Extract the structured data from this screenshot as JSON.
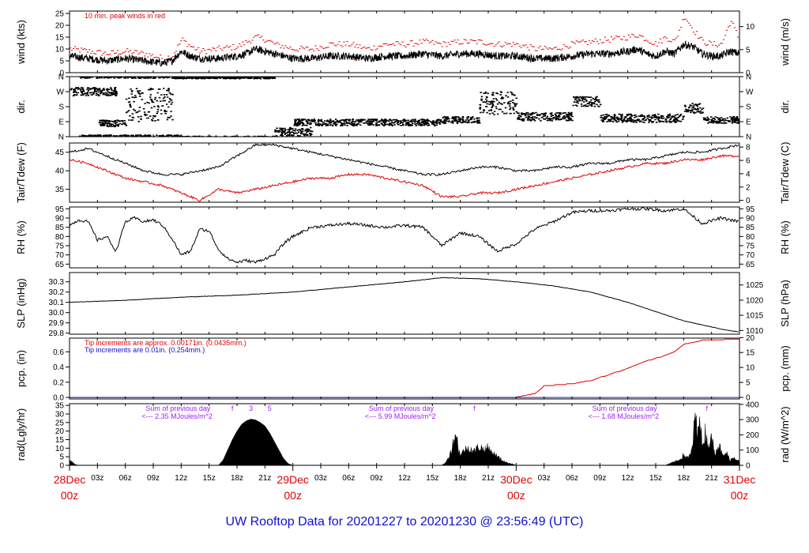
{
  "title": "UW Rooftop Data for 20201227  to  20201230 @ 23:56:49  (UTC)",
  "colors": {
    "red": "#e00000",
    "blue": "#1010d0",
    "purple": "#a020f0",
    "black": "#000000"
  },
  "x_axis": {
    "range_hours": [
      0,
      72
    ],
    "major": [
      {
        "hour": 0,
        "top": "28Dec",
        "bottom": "00z"
      },
      {
        "hour": 24,
        "top": "29Dec",
        "bottom": "00z"
      },
      {
        "hour": 48,
        "top": "30Dec",
        "bottom": "00z"
      },
      {
        "hour": 72,
        "top": "31Dec",
        "bottom": "00z"
      }
    ],
    "minor_labels": [
      "03z",
      "06z",
      "09z",
      "12z",
      "15z",
      "18z",
      "21z"
    ]
  },
  "chart_data": [
    {
      "type": "line",
      "key": "wind",
      "ylabel": "wind (kts)",
      "ylabel_right": "wind (m/s)",
      "ylim": [
        0,
        26
      ],
      "yticks": [
        0,
        5,
        10,
        15,
        20,
        25
      ],
      "yticks_right": [
        0,
        5,
        10
      ],
      "annotation": "10 min. peak winds in red",
      "series": [
        {
          "role": "mean",
          "color": "#000000",
          "x": [
            0,
            2,
            4,
            6,
            8,
            10,
            11,
            12,
            13,
            14,
            16,
            18,
            19,
            20,
            21,
            22,
            24,
            26,
            28,
            30,
            32,
            34,
            36,
            38,
            40,
            42,
            44,
            46,
            48,
            50,
            52,
            54,
            56,
            58,
            60,
            61,
            62,
            63,
            64,
            65,
            66,
            67,
            68,
            69,
            70,
            71,
            72
          ],
          "y": [
            7,
            6,
            5,
            6,
            5,
            4,
            5,
            9,
            7,
            6,
            6,
            7,
            8,
            10,
            9,
            8,
            6,
            6,
            7,
            7,
            6,
            7,
            7,
            8,
            7,
            8,
            8,
            7,
            7,
            6,
            6,
            7,
            8,
            8,
            9,
            10,
            8,
            7,
            9,
            8,
            12,
            11,
            8,
            7,
            7,
            9,
            8
          ]
        },
        {
          "role": "peak",
          "color": "#e00000",
          "x": [
            0,
            2,
            4,
            6,
            8,
            10,
            11,
            12,
            13,
            14,
            16,
            18,
            19,
            20,
            21,
            22,
            24,
            26,
            28,
            30,
            32,
            34,
            36,
            38,
            40,
            42,
            44,
            46,
            48,
            50,
            52,
            54,
            56,
            58,
            60,
            61,
            62,
            63,
            64,
            65,
            66,
            67,
            68,
            69,
            70,
            71,
            72
          ],
          "y": [
            10,
            9,
            8,
            9,
            8,
            6,
            7,
            14,
            11,
            9,
            10,
            11,
            13,
            15,
            14,
            12,
            10,
            10,
            12,
            12,
            10,
            12,
            12,
            13,
            12,
            13,
            13,
            12,
            12,
            10,
            10,
            12,
            13,
            14,
            15,
            16,
            14,
            12,
            15,
            13,
            24,
            18,
            13,
            12,
            12,
            22,
            13
          ]
        }
      ]
    },
    {
      "type": "scatter",
      "key": "dir",
      "ylabel": "dir.",
      "ylabel_right": "dir.",
      "ylim": [
        0,
        360
      ],
      "yticks": [
        {
          "v": 0,
          "label": "N"
        },
        {
          "v": 90,
          "label": "E"
        },
        {
          "v": 180,
          "label": "S"
        },
        {
          "v": 270,
          "label": "W"
        },
        {
          "v": 360,
          "label": "N"
        }
      ],
      "segments": [
        {
          "x0": 0,
          "x1": 5,
          "y": 270,
          "spread": 25
        },
        {
          "x0": 1,
          "x1": 12,
          "y": 360,
          "spread": 10
        },
        {
          "x0": 3,
          "x1": 6,
          "y": 80,
          "spread": 20
        },
        {
          "x0": 6,
          "x1": 11,
          "y": 190,
          "spread": 100
        },
        {
          "x0": 11,
          "x1": 22,
          "y": 355,
          "spread": 8
        },
        {
          "x0": 22,
          "x1": 26,
          "y": 30,
          "spread": 25
        },
        {
          "x0": 24,
          "x1": 40,
          "y": 85,
          "spread": 20
        },
        {
          "x0": 40,
          "x1": 44,
          "y": 100,
          "spread": 20
        },
        {
          "x0": 44,
          "x1": 48,
          "y": 200,
          "spread": 70
        },
        {
          "x0": 48,
          "x1": 54,
          "y": 120,
          "spread": 25
        },
        {
          "x0": 54,
          "x1": 57,
          "y": 210,
          "spread": 30
        },
        {
          "x0": 57,
          "x1": 66,
          "y": 110,
          "spread": 25
        },
        {
          "x0": 66,
          "x1": 68,
          "y": 170,
          "spread": 30
        },
        {
          "x0": 68,
          "x1": 72,
          "y": 100,
          "spread": 20
        }
      ]
    },
    {
      "type": "line",
      "key": "temp",
      "ylabel": "Tair/Tdew (F)",
      "ylabel_right": "Tair/Tdew (C)",
      "ylim": [
        31.5,
        47.5
      ],
      "yticks": [
        35,
        40,
        45
      ],
      "yticks_right": [
        {
          "label": "0",
          "f": 32
        },
        {
          "label": "2",
          "f": 35.6
        },
        {
          "label": "4",
          "f": 39.2
        },
        {
          "label": "6",
          "f": 42.8
        },
        {
          "label": "8",
          "f": 46.4
        }
      ],
      "series": [
        {
          "role": "Tair",
          "color": "#000000",
          "x": [
            0,
            2,
            4,
            6,
            8,
            10,
            12,
            14,
            16,
            18,
            20,
            22,
            24,
            26,
            28,
            30,
            32,
            34,
            36,
            38,
            40,
            42,
            44,
            46,
            48,
            50,
            52,
            54,
            56,
            58,
            60,
            62,
            64,
            66,
            68,
            70,
            72
          ],
          "y": [
            45,
            46,
            44,
            42,
            40,
            39,
            39,
            40,
            41,
            44,
            47,
            47,
            46,
            45,
            44,
            43,
            42,
            41,
            40,
            39,
            39,
            40,
            41,
            41,
            40,
            40,
            41,
            41,
            42,
            42,
            43,
            43,
            44,
            45,
            45,
            46,
            47
          ]
        },
        {
          "role": "Tdew",
          "color": "#e00000",
          "x": [
            0,
            2,
            4,
            6,
            8,
            10,
            12,
            14,
            16,
            18,
            20,
            22,
            24,
            26,
            28,
            30,
            32,
            34,
            36,
            38,
            40,
            42,
            44,
            46,
            48,
            50,
            52,
            54,
            56,
            58,
            60,
            62,
            64,
            66,
            68,
            70,
            72
          ],
          "y": [
            43,
            42,
            40,
            38,
            37,
            36,
            34,
            32,
            35,
            34,
            35,
            36,
            37,
            38,
            38,
            39,
            39,
            38,
            37,
            36,
            33,
            33,
            34,
            34,
            35,
            36,
            37,
            38,
            39,
            40,
            41,
            42,
            42,
            43,
            43,
            44,
            44
          ]
        }
      ]
    },
    {
      "type": "line",
      "key": "rh",
      "ylabel": "RH (%)",
      "ylabel_right": "RH (%)",
      "ylim": [
        63,
        96
      ],
      "yticks": [
        65,
        70,
        75,
        80,
        85,
        90,
        95
      ],
      "series": [
        {
          "role": "RH",
          "color": "#000000",
          "x": [
            0,
            1,
            2,
            3,
            4,
            5,
            6,
            7,
            8,
            9,
            10,
            11,
            12,
            13,
            14,
            15,
            16,
            17,
            18,
            19,
            20,
            21,
            22,
            23,
            24,
            26,
            28,
            30,
            32,
            34,
            36,
            38,
            40,
            42,
            44,
            46,
            48,
            50,
            52,
            54,
            56,
            58,
            60,
            62,
            64,
            66,
            68,
            70,
            72
          ],
          "y": [
            86,
            89,
            88,
            78,
            80,
            72,
            88,
            90,
            88,
            89,
            86,
            79,
            70,
            72,
            84,
            83,
            73,
            68,
            66,
            67,
            66,
            68,
            70,
            76,
            80,
            85,
            86,
            87,
            86,
            85,
            86,
            85,
            75,
            82,
            80,
            72,
            76,
            84,
            88,
            93,
            94,
            94,
            95,
            95,
            94,
            95,
            87,
            90,
            88
          ]
        }
      ]
    },
    {
      "type": "line",
      "key": "slp",
      "ylabel": "SLP (inHg)",
      "ylabel_right": "SLP (hPa)",
      "ylim": [
        29.79,
        30.39
      ],
      "yticks": [
        29.8,
        29.9,
        30.0,
        30.1,
        30.2,
        30.3
      ],
      "yticks_right": [
        {
          "label": "1010",
          "inhg": 29.826
        },
        {
          "label": "1015",
          "inhg": 29.974
        },
        {
          "label": "1020",
          "inhg": 30.121
        },
        {
          "label": "1025",
          "inhg": 30.269
        }
      ],
      "series": [
        {
          "role": "SLP",
          "color": "#000000",
          "x": [
            0,
            6,
            12,
            18,
            24,
            30,
            36,
            40,
            44,
            48,
            52,
            56,
            60,
            62,
            64,
            66,
            68,
            70,
            72
          ],
          "y": [
            30.1,
            30.12,
            30.15,
            30.17,
            30.2,
            30.25,
            30.3,
            30.34,
            30.33,
            30.3,
            30.26,
            30.2,
            30.1,
            30.04,
            29.98,
            29.92,
            29.88,
            29.84,
            29.81
          ]
        }
      ]
    },
    {
      "type": "line",
      "key": "pcp",
      "ylabel": "pcp. (in)",
      "ylabel_right": "pcp. (mm)",
      "ylim": [
        -0.02,
        0.78
      ],
      "yticks": [
        0.0,
        0.2,
        0.4,
        0.6
      ],
      "yticks_right": [
        {
          "label": "0",
          "in": 0
        },
        {
          "label": "5",
          "in": 0.197
        },
        {
          "label": "10",
          "in": 0.394
        },
        {
          "label": "15",
          "in": 0.591
        },
        {
          "label": "20",
          "in": 0.787
        }
      ],
      "notes": [
        {
          "text": "Tip increments are approx. 0.00171in. (0.0435mm.)",
          "color": "#e00000"
        },
        {
          "text": "Tip increments are 0.01in. (0.254mm.)",
          "color": "#1010d0"
        }
      ],
      "series": [
        {
          "role": "red-gauge",
          "color": "#e00000",
          "x": [
            0,
            48,
            50,
            51,
            54,
            56,
            58,
            60,
            62,
            64,
            65,
            66,
            68,
            72
          ],
          "y": [
            0,
            0,
            0.05,
            0.15,
            0.18,
            0.22,
            0.3,
            0.38,
            0.48,
            0.55,
            0.6,
            0.7,
            0.75,
            0.77
          ]
        },
        {
          "role": "blue-gauge",
          "color": "#1010d0",
          "x": [
            0,
            72
          ],
          "y": [
            0,
            0
          ]
        }
      ]
    },
    {
      "type": "area",
      "key": "rad",
      "ylabel": "rad(Lgly/hr)",
      "ylabel_right": "rad (W/m^2)",
      "ylim": [
        0,
        36
      ],
      "yticks": [
        0,
        5,
        10,
        15,
        20,
        25,
        30,
        35
      ],
      "yticks_right": [
        {
          "label": "0",
          "w": 0
        },
        {
          "label": "100",
          "w": 100
        },
        {
          "label": "200",
          "w": 200
        },
        {
          "label": "300",
          "w": 300
        },
        {
          "label": "400",
          "w": 400
        }
      ],
      "day_notes": [
        {
          "hour": 12,
          "line1": "Sum of previous day",
          "line2": "<--- 2.35 MJoules/m^2"
        },
        {
          "hour": 36,
          "line1": "Sum of previous day",
          "line2": "<--- 5.99 MJoules/m^2"
        },
        {
          "hour": 60,
          "line1": "Sum of previous day",
          "line2": "<--- 1.68 MJoules/m^2"
        }
      ],
      "markers": [
        {
          "hour": 17.5,
          "label": "f"
        },
        {
          "hour": 19.5,
          "label": "3"
        },
        {
          "hour": 21.5,
          "label": "5"
        },
        {
          "hour": 43.5,
          "label": "f"
        },
        {
          "hour": 68.5,
          "label": "f"
        }
      ],
      "series": [
        {
          "role": "day1",
          "color": "#000000",
          "x": [
            16,
            16.5,
            17,
            17.5,
            18,
            18.5,
            19,
            19.5,
            20,
            20.5,
            21,
            21.5,
            22,
            22.5,
            23,
            23.5,
            24
          ],
          "y": [
            0,
            3,
            9,
            15,
            20,
            24,
            26,
            27,
            26.5,
            25,
            23,
            19,
            14,
            9,
            4,
            1,
            0
          ]
        },
        {
          "role": "day2",
          "color": "#000000",
          "x": [
            40,
            40.5,
            41,
            41.5,
            41.8,
            42,
            42.5,
            43,
            43.5,
            44,
            44.5,
            45,
            45.5,
            46,
            46.5,
            47,
            47.5,
            48
          ],
          "y": [
            0,
            2,
            8,
            19,
            10,
            6,
            9,
            10,
            8,
            11,
            9,
            10,
            7,
            5,
            3,
            1.5,
            1,
            0
          ]
        },
        {
          "role": "day3",
          "color": "#000000",
          "x": [
            64,
            64.5,
            65,
            65.5,
            66,
            66.5,
            67,
            67.2,
            67.5,
            67.7,
            68,
            68.3,
            68.6,
            69,
            69.4,
            69.8,
            70.2,
            70.6,
            71,
            71.4,
            72
          ],
          "y": [
            0,
            1,
            2,
            3,
            6,
            4,
            10,
            33,
            14,
            36,
            9,
            20,
            12,
            15,
            8,
            12,
            5,
            7,
            3,
            5,
            2
          ]
        },
        {
          "role": "start",
          "color": "#000000",
          "x": [
            0,
            0.3,
            0.6,
            1
          ],
          "y": [
            3,
            2,
            0.5,
            0
          ]
        }
      ]
    }
  ]
}
